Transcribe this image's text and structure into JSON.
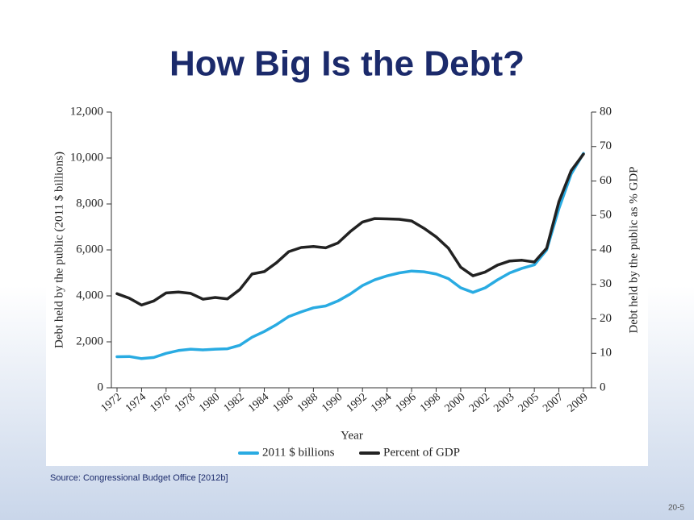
{
  "chart_data": {
    "type": "line",
    "title": "How Big Is the Debt?",
    "xlabel": "Year",
    "ylabel": "Debt held by the public (2011 $ billions)",
    "y2label": "Debt held by the public as % GDP",
    "categories": [
      "1972",
      null,
      "1974",
      null,
      "1976",
      null,
      "1978",
      null,
      "1980",
      null,
      "1982",
      null,
      "1984",
      null,
      "1986",
      null,
      "1988",
      null,
      "1990",
      null,
      "1992",
      null,
      "1994",
      null,
      "1996",
      null,
      "1998",
      null,
      "2000",
      null,
      "2002",
      null,
      "2003",
      null,
      "2005",
      null,
      "2007",
      null,
      "2009"
    ],
    "series": [
      {
        "name": "2011 $ billions",
        "color": "#29abe2",
        "axis": "y",
        "values": [
          1350,
          1360,
          1270,
          1320,
          1500,
          1620,
          1680,
          1650,
          1680,
          1700,
          1850,
          2200,
          2450,
          2750,
          3100,
          3300,
          3480,
          3560,
          3780,
          4080,
          4450,
          4700,
          4870,
          5000,
          5080,
          5050,
          4950,
          4750,
          4350,
          4150,
          4350,
          4700,
          5000,
          5200,
          5350,
          6000,
          7800,
          9300,
          10200
        ]
      },
      {
        "name": "Percent of GDP",
        "color": "#222222",
        "axis": "y2",
        "values": [
          27.3,
          26,
          24,
          25.2,
          27.5,
          27.8,
          27.4,
          25.7,
          26.2,
          25.8,
          28.5,
          33,
          33.7,
          36.3,
          39.5,
          40.7,
          41,
          40.6,
          42,
          45.3,
          48.1,
          49.1,
          49,
          48.9,
          48.4,
          46.3,
          43.8,
          40.5,
          35,
          32.5,
          33.6,
          35.6,
          36.8,
          37,
          36.5,
          40.5,
          54,
          63,
          67.8
        ]
      }
    ],
    "ylim": [
      0,
      12000
    ],
    "yticks": [
      0,
      {
        "value": 2000,
        "label": "2,000"
      },
      {
        "value": 4000,
        "label": "4,000"
      },
      {
        "value": 6000,
        "label": "6,000"
      },
      {
        "value": 8000,
        "label": "8,000"
      },
      {
        "value": 10000,
        "label": "10,000"
      },
      {
        "value": 12000,
        "label": "12,000"
      }
    ],
    "y2lim": [
      0,
      80
    ],
    "y2ticks": [
      0,
      10,
      20,
      30,
      40,
      50,
      60,
      70,
      80
    ],
    "grid": false,
    "legend": "bottom"
  },
  "source": "Source:  Congressional Budget Office [2012b]",
  "page_number": "20-5"
}
